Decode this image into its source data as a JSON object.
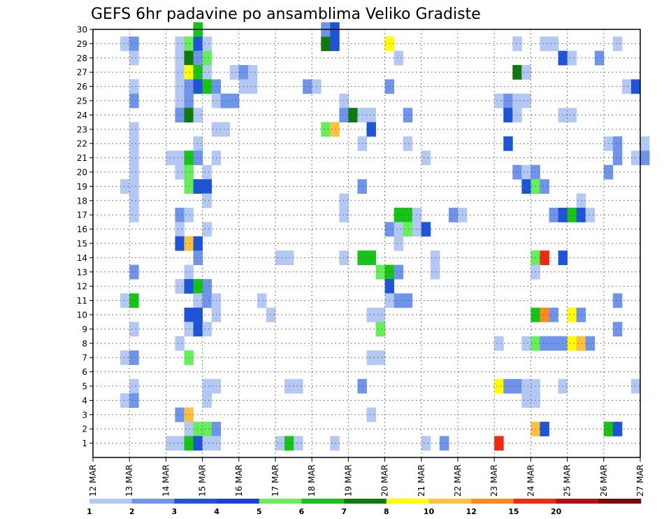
{
  "chart_data": {
    "type": "heatmap",
    "title": "GEFS 6hr padavine po ansamblima Veliko Gradiste",
    "xlabel": "",
    "ylabel": "",
    "x_tick_labels": [
      "12 MAR",
      "13 MAR",
      "14 MAR",
      "15 MAR",
      "16 MAR",
      "17 MAR",
      "18 MAR",
      "19 MAR",
      "20 MAR",
      "21 MAR",
      "22 MAR",
      "23 MAR",
      "24 MAR",
      "25 MAR",
      "26 MAR",
      "27 MAR"
    ],
    "y_tick_labels": [
      "1",
      "2",
      "3",
      "4",
      "5",
      "6",
      "7",
      "8",
      "9",
      "10",
      "11",
      "12",
      "13",
      "14",
      "15",
      "16",
      "17",
      "18",
      "19",
      "20",
      "21",
      "22",
      "23",
      "24",
      "25",
      "26",
      "27",
      "28",
      "29",
      "30"
    ],
    "x_range": [
      "12 MAR 00Z",
      "27 MAR 00Z"
    ],
    "time_step_hours": 6,
    "members": 30,
    "grid": true,
    "legend_placement": "bottom",
    "legend": {
      "labels": [
        "1",
        "2",
        "3",
        "4",
        "5",
        "6",
        "7",
        "8",
        "10",
        "12",
        "15",
        "20"
      ],
      "colors": [
        "#b3c8f5",
        "#6f95ea",
        "#1e55d8",
        "#1a3fd6",
        "#66ef5a",
        "#16c316",
        "#0e7a0e",
        "#ffff00",
        "#ffc040",
        "#ff8c1a",
        "#ee2a10",
        "#b01010",
        "#7a0808"
      ]
    },
    "cells": [
      {
        "m": 29,
        "c": "#b3c8f5",
        "t": [
          3
        ]
      },
      {
        "m": 29,
        "c": "#6f95ea",
        "t": [
          4
        ]
      },
      {
        "m": 29,
        "c": "#b3c8f5",
        "t": [
          9
        ]
      },
      {
        "m": 29,
        "c": "#66ef5a",
        "t": [
          10
        ]
      },
      {
        "m": 29,
        "c": "#1e55d8",
        "t": [
          11
        ]
      },
      {
        "m": 29,
        "c": "#b3c8f5",
        "t": [
          12
        ]
      },
      {
        "m": 29,
        "c": "#0e7a0e",
        "t": [
          25
        ]
      },
      {
        "m": 29,
        "c": "#1e55d8",
        "t": [
          26
        ]
      },
      {
        "m": 29,
        "c": "#ffff00",
        "t": [
          32
        ]
      },
      {
        "m": 29,
        "c": "#b3c8f5",
        "t": [
          46,
          49,
          50,
          57
        ]
      },
      {
        "m": 30,
        "c": "#16c316",
        "t": [
          11
        ]
      },
      {
        "m": 30,
        "c": "#6f95ea",
        "t": [
          25
        ]
      },
      {
        "m": 30,
        "c": "#1e55d8",
        "t": [
          26
        ]
      },
      {
        "m": 28,
        "c": "#b3c8f5",
        "t": [
          4,
          9
        ]
      },
      {
        "m": 28,
        "c": "#0e7a0e",
        "t": [
          10
        ]
      },
      {
        "m": 28,
        "c": "#6f95ea",
        "t": [
          11
        ]
      },
      {
        "m": 28,
        "c": "#66ef5a",
        "t": [
          12
        ]
      },
      {
        "m": 28,
        "c": "#b3c8f5",
        "t": [
          33
        ]
      },
      {
        "m": 28,
        "c": "#1e55d8",
        "t": [
          51
        ]
      },
      {
        "m": 28,
        "c": "#b3c8f5",
        "t": [
          52
        ]
      },
      {
        "m": 28,
        "c": "#6f95ea",
        "t": [
          55
        ]
      },
      {
        "m": 27,
        "c": "#b3c8f5",
        "t": [
          9
        ]
      },
      {
        "m": 27,
        "c": "#ffff00",
        "t": [
          10
        ]
      },
      {
        "m": 27,
        "c": "#16c316",
        "t": [
          11
        ]
      },
      {
        "m": 27,
        "c": "#b3c8f5",
        "t": [
          12,
          15
        ]
      },
      {
        "m": 27,
        "c": "#6f95ea",
        "t": [
          16
        ]
      },
      {
        "m": 27,
        "c": "#b3c8f5",
        "t": [
          17
        ]
      },
      {
        "m": 27,
        "c": "#0e7a0e",
        "t": [
          46
        ]
      },
      {
        "m": 27,
        "c": "#b3c8f5",
        "t": [
          47
        ]
      },
      {
        "m": 26,
        "c": "#b3c8f5",
        "t": [
          4,
          9
        ]
      },
      {
        "m": 26,
        "c": "#6f95ea",
        "t": [
          10
        ]
      },
      {
        "m": 26,
        "c": "#1e55d8",
        "t": [
          11
        ]
      },
      {
        "m": 26,
        "c": "#16c316",
        "t": [
          12
        ]
      },
      {
        "m": 26,
        "c": "#6f95ea",
        "t": [
          13
        ]
      },
      {
        "m": 26,
        "c": "#b3c8f5",
        "t": [
          16,
          17
        ]
      },
      {
        "m": 26,
        "c": "#6f95ea",
        "t": [
          23
        ]
      },
      {
        "m": 26,
        "c": "#b3c8f5",
        "t": [
          24
        ]
      },
      {
        "m": 26,
        "c": "#6f95ea",
        "t": [
          32
        ]
      },
      {
        "m": 26,
        "c": "#b3c8f5",
        "t": [
          58
        ]
      },
      {
        "m": 26,
        "c": "#1e55d8",
        "t": [
          59
        ]
      },
      {
        "m": 25,
        "c": "#6f95ea",
        "t": [
          4
        ]
      },
      {
        "m": 25,
        "c": "#b3c8f5",
        "t": [
          9
        ]
      },
      {
        "m": 25,
        "c": "#6f95ea",
        "t": [
          10
        ]
      },
      {
        "m": 25,
        "c": "#b3c8f5",
        "t": [
          13
        ]
      },
      {
        "m": 25,
        "c": "#6f95ea",
        "t": [
          14,
          15
        ]
      },
      {
        "m": 25,
        "c": "#b3c8f5",
        "t": [
          27,
          44
        ]
      },
      {
        "m": 25,
        "c": "#6f95ea",
        "t": [
          45
        ]
      },
      {
        "m": 25,
        "c": "#b3c8f5",
        "t": [
          46,
          47
        ]
      },
      {
        "m": 24,
        "c": "#6f95ea",
        "t": [
          9
        ]
      },
      {
        "m": 24,
        "c": "#0e7a0e",
        "t": [
          10
        ]
      },
      {
        "m": 24,
        "c": "#b3c8f5",
        "t": [
          11
        ]
      },
      {
        "m": 24,
        "c": "#6f95ea",
        "t": [
          27
        ]
      },
      {
        "m": 24,
        "c": "#0e7a0e",
        "t": [
          28
        ]
      },
      {
        "m": 24,
        "c": "#b3c8f5",
        "t": [
          29,
          30
        ]
      },
      {
        "m": 24,
        "c": "#6f95ea",
        "t": [
          34
        ]
      },
      {
        "m": 24,
        "c": "#1e55d8",
        "t": [
          45
        ]
      },
      {
        "m": 24,
        "c": "#b3c8f5",
        "t": [
          46,
          51,
          52
        ]
      },
      {
        "m": 23,
        "c": "#b3c8f5",
        "t": [
          4,
          13,
          14
        ]
      },
      {
        "m": 23,
        "c": "#66ef5a",
        "t": [
          25
        ]
      },
      {
        "m": 23,
        "c": "#ffc040",
        "t": [
          26
        ]
      },
      {
        "m": 23,
        "c": "#1e55d8",
        "t": [
          30
        ]
      },
      {
        "m": 22,
        "c": "#b3c8f5",
        "t": [
          4,
          11,
          29,
          34
        ]
      },
      {
        "m": 22,
        "c": "#1e55d8",
        "t": [
          45
        ]
      },
      {
        "m": 22,
        "c": "#b3c8f5",
        "t": [
          56
        ]
      },
      {
        "m": 22,
        "c": "#6f95ea",
        "t": [
          57
        ]
      },
      {
        "m": 22,
        "c": "#b3c8f5",
        "t": [
          60
        ]
      },
      {
        "m": 21,
        "c": "#b3c8f5",
        "t": [
          4,
          8,
          9
        ]
      },
      {
        "m": 21,
        "c": "#16c316",
        "t": [
          10
        ]
      },
      {
        "m": 21,
        "c": "#6f95ea",
        "t": [
          11
        ]
      },
      {
        "m": 21,
        "c": "#b3c8f5",
        "t": [
          13,
          36
        ]
      },
      {
        "m": 21,
        "c": "#6f95ea",
        "t": [
          57
        ]
      },
      {
        "m": 21,
        "c": "#b3c8f5",
        "t": [
          59
        ]
      },
      {
        "m": 21,
        "c": "#6f95ea",
        "t": [
          60
        ]
      },
      {
        "m": 20,
        "c": "#b3c8f5",
        "t": [
          4,
          9
        ]
      },
      {
        "m": 20,
        "c": "#66ef5a",
        "t": [
          10
        ]
      },
      {
        "m": 20,
        "c": "#b3c8f5",
        "t": [
          12
        ]
      },
      {
        "m": 20,
        "c": "#6f95ea",
        "t": [
          46
        ]
      },
      {
        "m": 20,
        "c": "#b3c8f5",
        "t": [
          47
        ]
      },
      {
        "m": 20,
        "c": "#6f95ea",
        "t": [
          48,
          56
        ]
      },
      {
        "m": 19,
        "c": "#b3c8f5",
        "t": [
          3,
          4
        ]
      },
      {
        "m": 19,
        "c": "#66ef5a",
        "t": [
          10
        ]
      },
      {
        "m": 19,
        "c": "#1e55d8",
        "t": [
          11,
          12
        ]
      },
      {
        "m": 19,
        "c": "#6f95ea",
        "t": [
          29
        ]
      },
      {
        "m": 19,
        "c": "#1e55d8",
        "t": [
          47
        ]
      },
      {
        "m": 19,
        "c": "#66ef5a",
        "t": [
          48
        ]
      },
      {
        "m": 19,
        "c": "#6f95ea",
        "t": [
          49
        ]
      },
      {
        "m": 18,
        "c": "#b3c8f5",
        "t": [
          4,
          12,
          27,
          53
        ]
      },
      {
        "m": 17,
        "c": "#b3c8f5",
        "t": [
          4
        ]
      },
      {
        "m": 17,
        "c": "#6f95ea",
        "t": [
          9
        ]
      },
      {
        "m": 17,
        "c": "#b3c8f5",
        "t": [
          10,
          27
        ]
      },
      {
        "m": 17,
        "c": "#16c316",
        "t": [
          33,
          34
        ]
      },
      {
        "m": 17,
        "c": "#b3c8f5",
        "t": [
          35
        ]
      },
      {
        "m": 17,
        "c": "#6f95ea",
        "t": [
          39
        ]
      },
      {
        "m": 17,
        "c": "#b3c8f5",
        "t": [
          40
        ]
      },
      {
        "m": 17,
        "c": "#6f95ea",
        "t": [
          50
        ]
      },
      {
        "m": 17,
        "c": "#1e55d8",
        "t": [
          51
        ]
      },
      {
        "m": 17,
        "c": "#16c316",
        "t": [
          52
        ]
      },
      {
        "m": 17,
        "c": "#1e55d8",
        "t": [
          53
        ]
      },
      {
        "m": 17,
        "c": "#b3c8f5",
        "t": [
          54
        ]
      },
      {
        "m": 16,
        "c": "#b3c8f5",
        "t": [
          9,
          12
        ]
      },
      {
        "m": 16,
        "c": "#6f95ea",
        "t": [
          32
        ]
      },
      {
        "m": 16,
        "c": "#b3c8f5",
        "t": [
          33
        ]
      },
      {
        "m": 16,
        "c": "#66ef5a",
        "t": [
          34
        ]
      },
      {
        "m": 16,
        "c": "#b3c8f5",
        "t": [
          35
        ]
      },
      {
        "m": 16,
        "c": "#1e55d8",
        "t": [
          36
        ]
      },
      {
        "m": 15,
        "c": "#1e55d8",
        "t": [
          9
        ]
      },
      {
        "m": 15,
        "c": "#ffc040",
        "t": [
          10
        ]
      },
      {
        "m": 15,
        "c": "#1e55d8",
        "t": [
          11
        ]
      },
      {
        "m": 15,
        "c": "#b3c8f5",
        "t": [
          33
        ]
      },
      {
        "m": 14,
        "c": "#6f95ea",
        "t": [
          11
        ]
      },
      {
        "m": 14,
        "c": "#b3c8f5",
        "t": [
          20,
          21,
          27
        ]
      },
      {
        "m": 14,
        "c": "#16c316",
        "t": [
          29,
          30
        ]
      },
      {
        "m": 14,
        "c": "#b3c8f5",
        "t": [
          37
        ]
      },
      {
        "m": 14,
        "c": "#66ef5a",
        "t": [
          48
        ]
      },
      {
        "m": 14,
        "c": "#ee2a10",
        "t": [
          49
        ]
      },
      {
        "m": 14,
        "c": "#1e55d8",
        "t": [
          51
        ]
      },
      {
        "m": 13,
        "c": "#6f95ea",
        "t": [
          4
        ]
      },
      {
        "m": 13,
        "c": "#b3c8f5",
        "t": [
          10
        ]
      },
      {
        "m": 13,
        "c": "#66ef5a",
        "t": [
          31
        ]
      },
      {
        "m": 13,
        "c": "#16c316",
        "t": [
          32
        ]
      },
      {
        "m": 13,
        "c": "#6f95ea",
        "t": [
          33
        ]
      },
      {
        "m": 13,
        "c": "#b3c8f5",
        "t": [
          37,
          48
        ]
      },
      {
        "m": 12,
        "c": "#b3c8f5",
        "t": [
          9
        ]
      },
      {
        "m": 12,
        "c": "#1e55d8",
        "t": [
          10
        ]
      },
      {
        "m": 12,
        "c": "#16c316",
        "t": [
          11
        ]
      },
      {
        "m": 12,
        "c": "#6f95ea",
        "t": [
          12
        ]
      },
      {
        "m": 12,
        "c": "#1e55d8",
        "t": [
          32
        ]
      },
      {
        "m": 11,
        "c": "#b3c8f5",
        "t": [
          3
        ]
      },
      {
        "m": 11,
        "c": "#16c316",
        "t": [
          4
        ]
      },
      {
        "m": 11,
        "c": "#b3c8f5",
        "t": [
          11
        ]
      },
      {
        "m": 11,
        "c": "#6f95ea",
        "t": [
          12
        ]
      },
      {
        "m": 11,
        "c": "#b3c8f5",
        "t": [
          13,
          18,
          32
        ]
      },
      {
        "m": 11,
        "c": "#6f95ea",
        "t": [
          33,
          34,
          57
        ]
      },
      {
        "m": 10,
        "c": "#1e55d8",
        "t": [
          10,
          11
        ]
      },
      {
        "m": 10,
        "c": "#b3c8f5",
        "t": [
          13,
          19,
          30,
          31
        ]
      },
      {
        "m": 10,
        "c": "#16c316",
        "t": [
          48
        ]
      },
      {
        "m": 10,
        "c": "#ff8c1a",
        "t": [
          49
        ]
      },
      {
        "m": 10,
        "c": "#6f95ea",
        "t": [
          50
        ]
      },
      {
        "m": 10,
        "c": "#ffff00",
        "t": [
          52
        ]
      },
      {
        "m": 10,
        "c": "#6f95ea",
        "t": [
          53
        ]
      },
      {
        "m": 9,
        "c": "#b3c8f5",
        "t": [
          4,
          10
        ]
      },
      {
        "m": 9,
        "c": "#1e55d8",
        "t": [
          11
        ]
      },
      {
        "m": 9,
        "c": "#b3c8f5",
        "t": [
          12
        ]
      },
      {
        "m": 9,
        "c": "#66ef5a",
        "t": [
          31
        ]
      },
      {
        "m": 9,
        "c": "#6f95ea",
        "t": [
          57
        ]
      },
      {
        "m": 8,
        "c": "#b3c8f5",
        "t": [
          9,
          44,
          47
        ]
      },
      {
        "m": 8,
        "c": "#66ef5a",
        "t": [
          48
        ]
      },
      {
        "m": 8,
        "c": "#6f95ea",
        "t": [
          49,
          50,
          51
        ]
      },
      {
        "m": 8,
        "c": "#ffff00",
        "t": [
          52
        ]
      },
      {
        "m": 8,
        "c": "#ffc040",
        "t": [
          53
        ]
      },
      {
        "m": 8,
        "c": "#6f95ea",
        "t": [
          54
        ]
      },
      {
        "m": 7,
        "c": "#b3c8f5",
        "t": [
          3
        ]
      },
      {
        "m": 7,
        "c": "#6f95ea",
        "t": [
          4
        ]
      },
      {
        "m": 7,
        "c": "#66ef5a",
        "t": [
          10
        ]
      },
      {
        "m": 7,
        "c": "#b3c8f5",
        "t": [
          30,
          31
        ]
      },
      {
        "m": 5,
        "c": "#b3c8f5",
        "t": [
          4,
          12,
          13,
          21,
          22
        ]
      },
      {
        "m": 5,
        "c": "#6f95ea",
        "t": [
          29
        ]
      },
      {
        "m": 5,
        "c": "#ffff00",
        "t": [
          44
        ]
      },
      {
        "m": 5,
        "c": "#6f95ea",
        "t": [
          45,
          46
        ]
      },
      {
        "m": 5,
        "c": "#b3c8f5",
        "t": [
          47,
          48,
          51,
          59
        ]
      },
      {
        "m": 4,
        "c": "#b3c8f5",
        "t": [
          3
        ]
      },
      {
        "m": 4,
        "c": "#6f95ea",
        "t": [
          4
        ]
      },
      {
        "m": 4,
        "c": "#b3c8f5",
        "t": [
          12,
          47,
          48
        ]
      },
      {
        "m": 3,
        "c": "#6f95ea",
        "t": [
          9
        ]
      },
      {
        "m": 3,
        "c": "#ffc040",
        "t": [
          10
        ]
      },
      {
        "m": 3,
        "c": "#b3c8f5",
        "t": [
          30
        ]
      },
      {
        "m": 2,
        "c": "#b3c8f5",
        "t": [
          10
        ]
      },
      {
        "m": 2,
        "c": "#66ef5a",
        "t": [
          11,
          12
        ]
      },
      {
        "m": 2,
        "c": "#6f95ea",
        "t": [
          13
        ]
      },
      {
        "m": 2,
        "c": "#ffc040",
        "t": [
          48
        ]
      },
      {
        "m": 2,
        "c": "#1e55d8",
        "t": [
          49
        ]
      },
      {
        "m": 2,
        "c": "#16c316",
        "t": [
          56
        ]
      },
      {
        "m": 2,
        "c": "#1e55d8",
        "t": [
          57
        ]
      },
      {
        "m": 1,
        "c": "#b3c8f5",
        "t": [
          8,
          9
        ]
      },
      {
        "m": 1,
        "c": "#16c316",
        "t": [
          10
        ]
      },
      {
        "m": 1,
        "c": "#1e55d8",
        "t": [
          11
        ]
      },
      {
        "m": 1,
        "c": "#b3c8f5",
        "t": [
          12,
          13,
          20
        ]
      },
      {
        "m": 1,
        "c": "#16c316",
        "t": [
          21
        ]
      },
      {
        "m": 1,
        "c": "#b3c8f5",
        "t": [
          22,
          26,
          36
        ]
      },
      {
        "m": 1,
        "c": "#6f95ea",
        "t": [
          38
        ]
      },
      {
        "m": 1,
        "c": "#ee2a10",
        "t": [
          44
        ]
      }
    ]
  }
}
